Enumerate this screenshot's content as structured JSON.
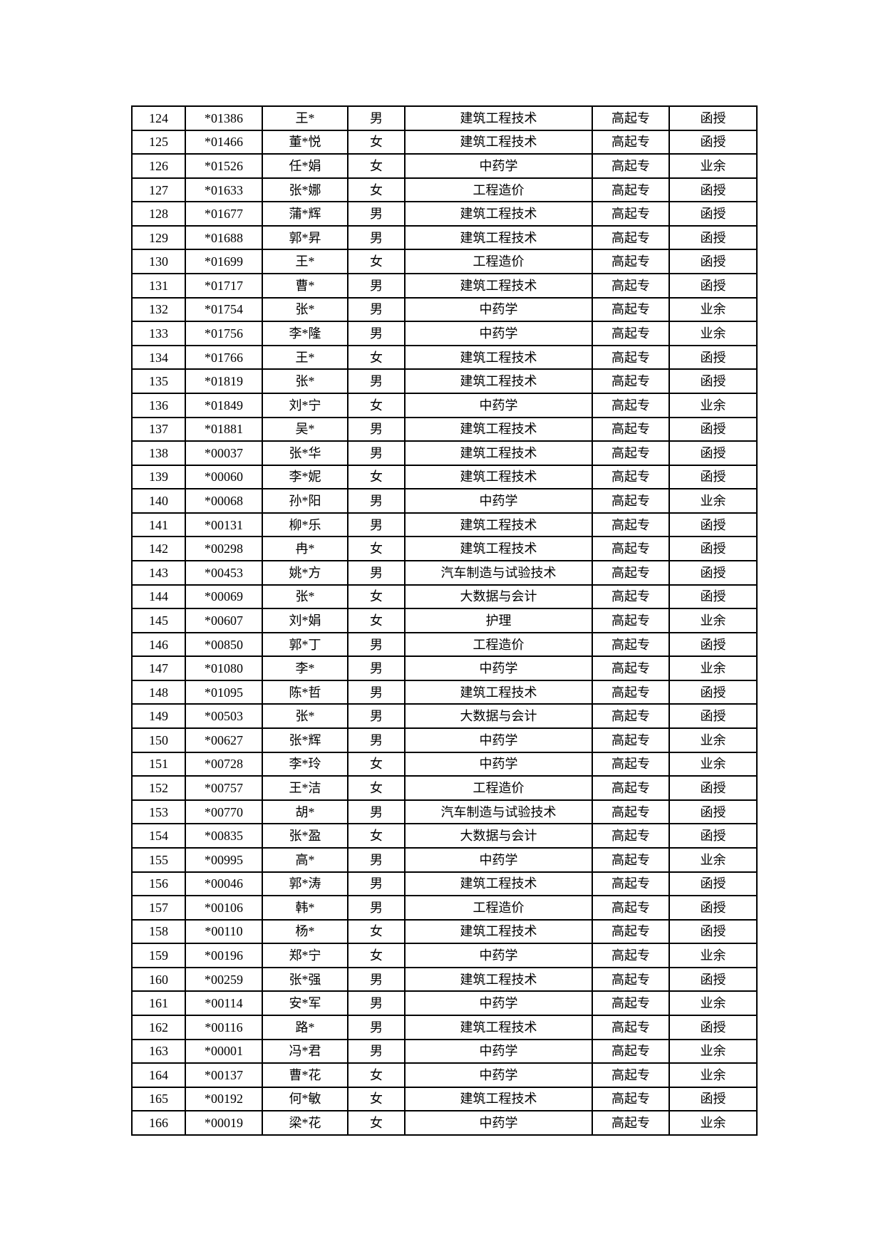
{
  "page": {
    "background_color": "#ffffff",
    "table_border_color": "#000000",
    "text_color": "#000000"
  },
  "table": {
    "level_value": "高起专",
    "mode_values": [
      "函授",
      "业余"
    ],
    "rows": [
      {
        "seq": "124",
        "exam_no": "*01386",
        "name": "王*",
        "gender": "男",
        "major": "建筑工程技术",
        "level": "高起专",
        "mode": "函授"
      },
      {
        "seq": "125",
        "exam_no": "*01466",
        "name": "董*悦",
        "gender": "女",
        "major": "建筑工程技术",
        "level": "高起专",
        "mode": "函授"
      },
      {
        "seq": "126",
        "exam_no": "*01526",
        "name": "任*娟",
        "gender": "女",
        "major": "中药学",
        "level": "高起专",
        "mode": "业余"
      },
      {
        "seq": "127",
        "exam_no": "*01633",
        "name": "张*娜",
        "gender": "女",
        "major": "工程造价",
        "level": "高起专",
        "mode": "函授"
      },
      {
        "seq": "128",
        "exam_no": "*01677",
        "name": "蒲*辉",
        "gender": "男",
        "major": "建筑工程技术",
        "level": "高起专",
        "mode": "函授"
      },
      {
        "seq": "129",
        "exam_no": "*01688",
        "name": "郭*昇",
        "gender": "男",
        "major": "建筑工程技术",
        "level": "高起专",
        "mode": "函授"
      },
      {
        "seq": "130",
        "exam_no": "*01699",
        "name": "王*",
        "gender": "女",
        "major": "工程造价",
        "level": "高起专",
        "mode": "函授"
      },
      {
        "seq": "131",
        "exam_no": "*01717",
        "name": "曹*",
        "gender": "男",
        "major": "建筑工程技术",
        "level": "高起专",
        "mode": "函授"
      },
      {
        "seq": "132",
        "exam_no": "*01754",
        "name": "张*",
        "gender": "男",
        "major": "中药学",
        "level": "高起专",
        "mode": "业余"
      },
      {
        "seq": "133",
        "exam_no": "*01756",
        "name": "李*隆",
        "gender": "男",
        "major": "中药学",
        "level": "高起专",
        "mode": "业余"
      },
      {
        "seq": "134",
        "exam_no": "*01766",
        "name": "王*",
        "gender": "女",
        "major": "建筑工程技术",
        "level": "高起专",
        "mode": "函授"
      },
      {
        "seq": "135",
        "exam_no": "*01819",
        "name": "张*",
        "gender": "男",
        "major": "建筑工程技术",
        "level": "高起专",
        "mode": "函授"
      },
      {
        "seq": "136",
        "exam_no": "*01849",
        "name": "刘*宁",
        "gender": "女",
        "major": "中药学",
        "level": "高起专",
        "mode": "业余"
      },
      {
        "seq": "137",
        "exam_no": "*01881",
        "name": "吴*",
        "gender": "男",
        "major": "建筑工程技术",
        "level": "高起专",
        "mode": "函授"
      },
      {
        "seq": "138",
        "exam_no": "*00037",
        "name": "张*华",
        "gender": "男",
        "major": "建筑工程技术",
        "level": "高起专",
        "mode": "函授"
      },
      {
        "seq": "139",
        "exam_no": "*00060",
        "name": "李*妮",
        "gender": "女",
        "major": "建筑工程技术",
        "level": "高起专",
        "mode": "函授"
      },
      {
        "seq": "140",
        "exam_no": "*00068",
        "name": "孙*阳",
        "gender": "男",
        "major": "中药学",
        "level": "高起专",
        "mode": "业余"
      },
      {
        "seq": "141",
        "exam_no": "*00131",
        "name": "柳*乐",
        "gender": "男",
        "major": "建筑工程技术",
        "level": "高起专",
        "mode": "函授"
      },
      {
        "seq": "142",
        "exam_no": "*00298",
        "name": "冉*",
        "gender": "女",
        "major": "建筑工程技术",
        "level": "高起专",
        "mode": "函授"
      },
      {
        "seq": "143",
        "exam_no": "*00453",
        "name": "姚*方",
        "gender": "男",
        "major": "汽车制造与试验技术",
        "level": "高起专",
        "mode": "函授"
      },
      {
        "seq": "144",
        "exam_no": "*00069",
        "name": "张*",
        "gender": "女",
        "major": "大数据与会计",
        "level": "高起专",
        "mode": "函授"
      },
      {
        "seq": "145",
        "exam_no": "*00607",
        "name": "刘*娟",
        "gender": "女",
        "major": "护理",
        "level": "高起专",
        "mode": "业余"
      },
      {
        "seq": "146",
        "exam_no": "*00850",
        "name": "郭*丁",
        "gender": "男",
        "major": "工程造价",
        "level": "高起专",
        "mode": "函授"
      },
      {
        "seq": "147",
        "exam_no": "*01080",
        "name": "李*",
        "gender": "男",
        "major": "中药学",
        "level": "高起专",
        "mode": "业余"
      },
      {
        "seq": "148",
        "exam_no": "*01095",
        "name": "陈*哲",
        "gender": "男",
        "major": "建筑工程技术",
        "level": "高起专",
        "mode": "函授"
      },
      {
        "seq": "149",
        "exam_no": "*00503",
        "name": "张*",
        "gender": "男",
        "major": "大数据与会计",
        "level": "高起专",
        "mode": "函授"
      },
      {
        "seq": "150",
        "exam_no": "*00627",
        "name": "张*辉",
        "gender": "男",
        "major": "中药学",
        "level": "高起专",
        "mode": "业余"
      },
      {
        "seq": "151",
        "exam_no": "*00728",
        "name": "李*玲",
        "gender": "女",
        "major": "中药学",
        "level": "高起专",
        "mode": "业余"
      },
      {
        "seq": "152",
        "exam_no": "*00757",
        "name": "王*洁",
        "gender": "女",
        "major": "工程造价",
        "level": "高起专",
        "mode": "函授"
      },
      {
        "seq": "153",
        "exam_no": "*00770",
        "name": "胡*",
        "gender": "男",
        "major": "汽车制造与试验技术",
        "level": "高起专",
        "mode": "函授"
      },
      {
        "seq": "154",
        "exam_no": "*00835",
        "name": "张*盈",
        "gender": "女",
        "major": "大数据与会计",
        "level": "高起专",
        "mode": "函授"
      },
      {
        "seq": "155",
        "exam_no": "*00995",
        "name": "高*",
        "gender": "男",
        "major": "中药学",
        "level": "高起专",
        "mode": "业余"
      },
      {
        "seq": "156",
        "exam_no": "*00046",
        "name": "郭*涛",
        "gender": "男",
        "major": "建筑工程技术",
        "level": "高起专",
        "mode": "函授"
      },
      {
        "seq": "157",
        "exam_no": "*00106",
        "name": "韩*",
        "gender": "男",
        "major": "工程造价",
        "level": "高起专",
        "mode": "函授"
      },
      {
        "seq": "158",
        "exam_no": "*00110",
        "name": "杨*",
        "gender": "女",
        "major": "建筑工程技术",
        "level": "高起专",
        "mode": "函授"
      },
      {
        "seq": "159",
        "exam_no": "*00196",
        "name": "郑*宁",
        "gender": "女",
        "major": "中药学",
        "level": "高起专",
        "mode": "业余"
      },
      {
        "seq": "160",
        "exam_no": "*00259",
        "name": "张*强",
        "gender": "男",
        "major": "建筑工程技术",
        "level": "高起专",
        "mode": "函授"
      },
      {
        "seq": "161",
        "exam_no": "*00114",
        "name": "安*军",
        "gender": "男",
        "major": "中药学",
        "level": "高起专",
        "mode": "业余"
      },
      {
        "seq": "162",
        "exam_no": "*00116",
        "name": "路*",
        "gender": "男",
        "major": "建筑工程技术",
        "level": "高起专",
        "mode": "函授"
      },
      {
        "seq": "163",
        "exam_no": "*00001",
        "name": "冯*君",
        "gender": "男",
        "major": "中药学",
        "level": "高起专",
        "mode": "业余"
      },
      {
        "seq": "164",
        "exam_no": "*00137",
        "name": "曹*花",
        "gender": "女",
        "major": "中药学",
        "level": "高起专",
        "mode": "业余"
      },
      {
        "seq": "165",
        "exam_no": "*00192",
        "name": "何*敏",
        "gender": "女",
        "major": "建筑工程技术",
        "level": "高起专",
        "mode": "函授"
      },
      {
        "seq": "166",
        "exam_no": "*00019",
        "name": "梁*花",
        "gender": "女",
        "major": "中药学",
        "level": "高起专",
        "mode": "业余"
      }
    ]
  }
}
